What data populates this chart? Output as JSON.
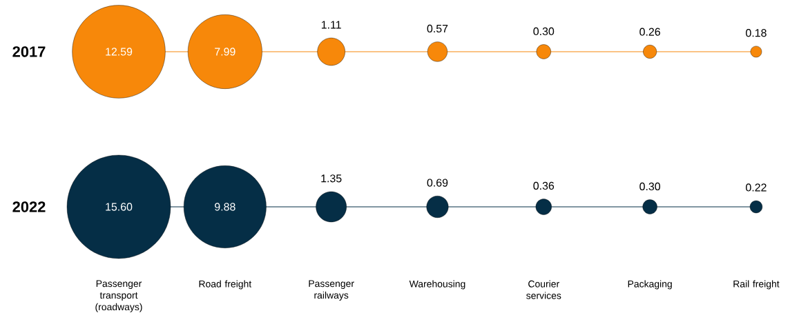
{
  "chart_data": {
    "type": "other",
    "categories": [
      "Passenger transport (roadways)",
      "Road freight",
      "Passenger railways",
      "Warehousing",
      "Courier services",
      "Packaging",
      "Rail freight"
    ],
    "series": [
      {
        "name": "2017",
        "color": "#f7880a",
        "values": [
          12.59,
          7.99,
          1.11,
          0.57,
          0.3,
          0.26,
          0.18
        ],
        "value_labels": [
          "12.59",
          "7.99",
          "1.11",
          "0.57",
          "0.30",
          "0.26",
          "0.18"
        ]
      },
      {
        "name": "2022",
        "color": "#052e46",
        "values": [
          15.6,
          9.88,
          1.35,
          0.69,
          0.36,
          0.3,
          0.22
        ],
        "value_labels": [
          "15.60",
          "9.88",
          "1.35",
          "0.69",
          "0.36",
          "0.30",
          "0.22"
        ]
      }
    ]
  }
}
